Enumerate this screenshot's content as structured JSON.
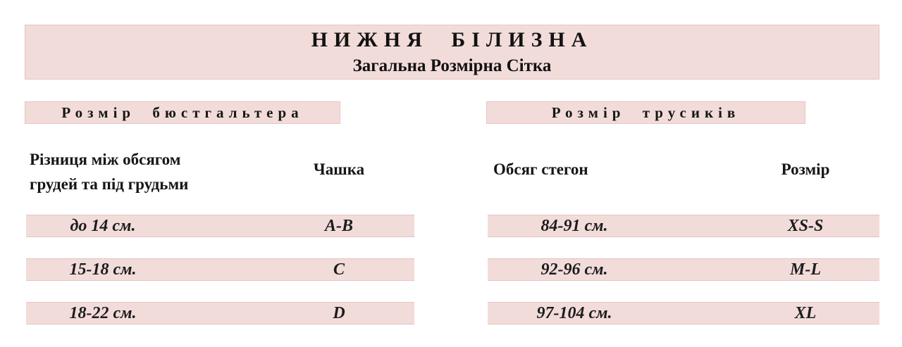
{
  "header": {
    "title": "НИЖНЯ БІЛИЗНА",
    "subtitle": "Загальна Розмірна Сітка"
  },
  "bra": {
    "section_title": "Розмір бюстгальтера",
    "measure_header_line1": "Різниця між обсягом",
    "measure_header_line2": "грудей та під грудьми",
    "size_header": "Чашка",
    "rows": [
      {
        "measure": "до 14 см.",
        "size": "A-B"
      },
      {
        "measure": "15-18 см.",
        "size": "C"
      },
      {
        "measure": "18-22 см.",
        "size": "D"
      }
    ]
  },
  "panties": {
    "section_title": "Розмір трусиків",
    "measure_header": "Обсяг стегон",
    "size_header": "Розмір",
    "rows": [
      {
        "measure": "84-91 см.",
        "size": "XS-S"
      },
      {
        "measure": "92-96 см.",
        "size": "M-L"
      },
      {
        "measure": "97-104 см.",
        "size": "XL"
      }
    ]
  },
  "colors": {
    "band_background": "#f2dcda",
    "band_border": "#e5c4c1",
    "text": "#161616"
  }
}
